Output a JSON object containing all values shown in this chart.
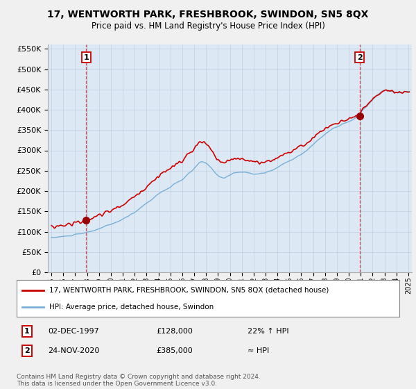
{
  "title": "17, WENTWORTH PARK, FRESHBROOK, SWINDON, SN5 8QX",
  "subtitle": "Price paid vs. HM Land Registry's House Price Index (HPI)",
  "legend_line1": "17, WENTWORTH PARK, FRESHBROOK, SWINDON, SN5 8QX (detached house)",
  "legend_line2": "HPI: Average price, detached house, Swindon",
  "annotation1_box": "1",
  "annotation1_date": "02-DEC-1997",
  "annotation1_price": "£128,000",
  "annotation1_hpi": "22% ↑ HPI",
  "annotation2_box": "2",
  "annotation2_date": "24-NOV-2020",
  "annotation2_price": "£385,000",
  "annotation2_hpi": "≈ HPI",
  "footnote": "Contains HM Land Registry data © Crown copyright and database right 2024.\nThis data is licensed under the Open Government Licence v3.0.",
  "sale1_year": 1997.92,
  "sale1_price": 128000,
  "sale2_year": 2020.9,
  "sale2_price": 385000,
  "hpi_color": "#7bafd4",
  "price_color": "#cc0000",
  "sale_dot_color": "#990000",
  "dashed_line_color": "#cc0000",
  "background_color": "#f0f0f0",
  "plot_bg_color": "#dce9f5",
  "ylim": [
    0,
    560000
  ],
  "yticks": [
    0,
    50000,
    100000,
    150000,
    200000,
    250000,
    300000,
    350000,
    400000,
    450000,
    500000,
    550000
  ],
  "xlim_start": 1994.7,
  "xlim_end": 2025.3
}
